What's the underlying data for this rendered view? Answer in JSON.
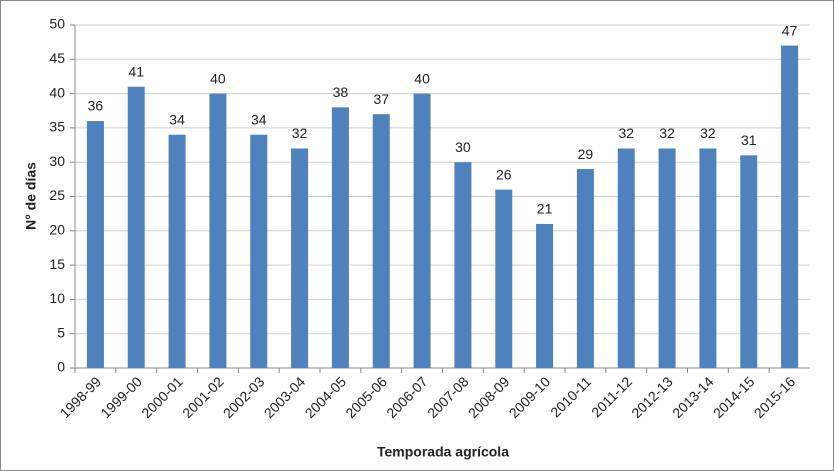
{
  "chart_data": {
    "type": "bar",
    "categories": [
      "1998-99",
      "1999-00",
      "2000-01",
      "2001-02",
      "2002-03",
      "2003-04",
      "2004-05",
      "2005-06",
      "2006-07",
      "2007-08",
      "2008-09",
      "2009-10",
      "2010-11",
      "2011-12",
      "2012-13",
      "2013-14",
      "2014-15",
      "2015-16"
    ],
    "values": [
      36,
      41,
      34,
      40,
      34,
      32,
      38,
      37,
      40,
      30,
      26,
      21,
      29,
      32,
      32,
      32,
      31,
      47
    ],
    "color": "#4f81bd",
    "y_label": "N° de días",
    "x_label": "Temporada agrícola",
    "ylim": [
      0,
      50
    ],
    "yticks": [
      0,
      5,
      10,
      15,
      20,
      25,
      30,
      35,
      40,
      45,
      50
    ],
    "grid": true
  }
}
